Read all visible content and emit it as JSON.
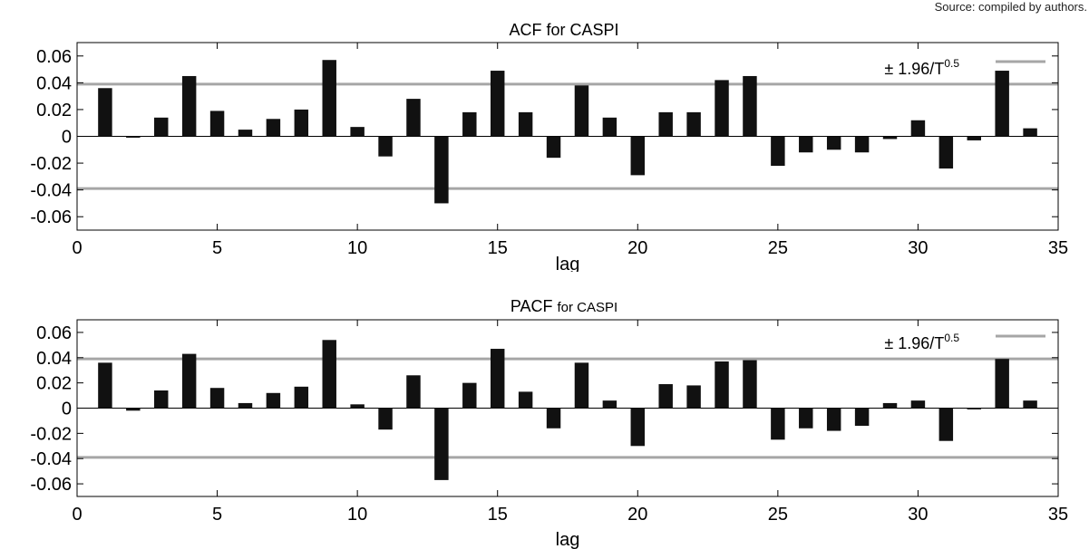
{
  "source_note": "Source: compiled by authors.",
  "chart_data": [
    {
      "type": "bar",
      "title": "ACF for CASPI",
      "xlabel": "lag",
      "ylabel": "",
      "xlim": [
        0,
        35
      ],
      "ylim": [
        -0.07,
        0.07
      ],
      "xticks": [
        0,
        5,
        10,
        15,
        20,
        25,
        30,
        35
      ],
      "yticks": [
        0.06,
        0.04,
        0.02,
        0,
        -0.02,
        -0.04,
        -0.06
      ],
      "ytick_labels": [
        "0.06",
        "0.04",
        "0.02",
        "0",
        "-0.02",
        "-0.04",
        "-0.06"
      ],
      "bound": 0.039,
      "legend": {
        "label": "± 1.96/T",
        "exponent": "0.5",
        "position": "top-right"
      },
      "bar_color": "#111111",
      "band_color": "#a6a6a6",
      "x": [
        1,
        2,
        3,
        4,
        5,
        6,
        7,
        8,
        9,
        10,
        11,
        12,
        13,
        14,
        15,
        16,
        17,
        18,
        19,
        20,
        21,
        22,
        23,
        24,
        25,
        26,
        27,
        28,
        29,
        30,
        31,
        32,
        33,
        34
      ],
      "values": [
        0.036,
        -0.001,
        0.014,
        0.045,
        0.019,
        0.005,
        0.013,
        0.02,
        0.057,
        0.007,
        -0.015,
        0.028,
        -0.05,
        0.018,
        0.049,
        0.018,
        -0.016,
        0.038,
        0.014,
        -0.029,
        0.018,
        0.018,
        0.042,
        0.045,
        -0.022,
        -0.012,
        -0.01,
        -0.012,
        -0.002,
        0.012,
        -0.024,
        -0.003,
        0.049,
        0.006
      ]
    },
    {
      "type": "bar",
      "title_main": "PACF",
      "title_sub": "for CASPI",
      "xlabel": "lag",
      "ylabel": "",
      "xlim": [
        0,
        35
      ],
      "ylim": [
        -0.07,
        0.07
      ],
      "xticks": [
        0,
        5,
        10,
        15,
        20,
        25,
        30,
        35
      ],
      "yticks": [
        0.06,
        0.04,
        0.02,
        0,
        -0.02,
        -0.04,
        -0.06
      ],
      "ytick_labels": [
        "0.06",
        "0.04",
        "0.02",
        "0",
        "-0.02",
        "-0.04",
        "-0.06"
      ],
      "bound": 0.039,
      "legend": {
        "label": "± 1.96/T",
        "exponent": "0.5",
        "position": "top-right"
      },
      "bar_color": "#111111",
      "band_color": "#a6a6a6",
      "x": [
        1,
        2,
        3,
        4,
        5,
        6,
        7,
        8,
        9,
        10,
        11,
        12,
        13,
        14,
        15,
        16,
        17,
        18,
        19,
        20,
        21,
        22,
        23,
        24,
        25,
        26,
        27,
        28,
        29,
        30,
        31,
        32,
        33,
        34
      ],
      "values": [
        0.036,
        -0.002,
        0.014,
        0.043,
        0.016,
        0.004,
        0.012,
        0.017,
        0.054,
        0.003,
        -0.017,
        0.026,
        -0.057,
        0.02,
        0.047,
        0.013,
        -0.016,
        0.036,
        0.006,
        -0.03,
        0.019,
        0.018,
        0.037,
        0.038,
        -0.025,
        -0.016,
        -0.018,
        -0.014,
        0.004,
        0.006,
        -0.026,
        -0.001,
        0.039,
        0.006
      ]
    }
  ]
}
